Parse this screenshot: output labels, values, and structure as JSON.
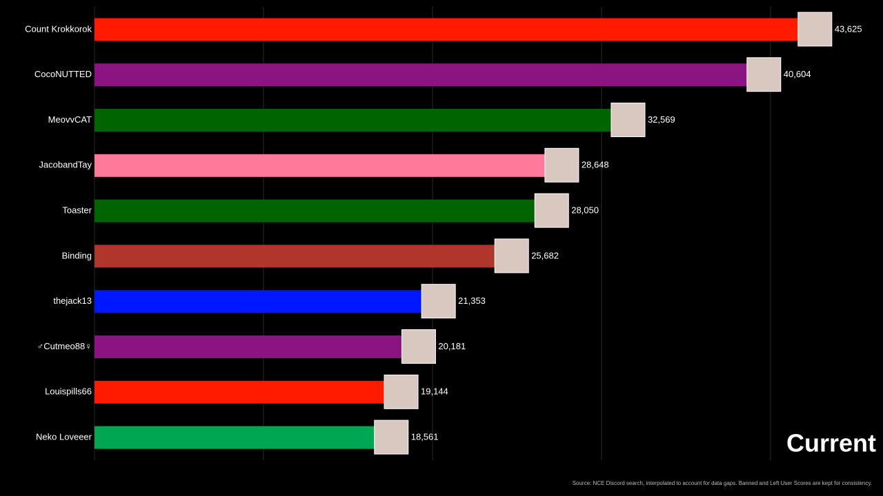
{
  "chart_data": {
    "type": "bar",
    "orientation": "horizontal",
    "categories": [
      "Count Krokkorok",
      "CocoNUTTED",
      "MeovvCAT",
      "JacobandTay",
      "Toaster",
      "Binding",
      "thejack13",
      "♂Cutmeo88♀",
      "Louispills66",
      "Neko Loveeer"
    ],
    "values": [
      43625,
      40604,
      32569,
      28648,
      28050,
      25682,
      21353,
      20181,
      19144,
      18561
    ],
    "value_labels": [
      "43,625",
      "40,604",
      "32,569",
      "28,648",
      "28,050",
      "25,682",
      "21,353",
      "20,181",
      "19,144",
      "18,561"
    ],
    "colors": [
      "#ff1a00",
      "#8b1482",
      "#006400",
      "#ff7a9a",
      "#006400",
      "#b0352a",
      "#0018ff",
      "#8b1482",
      "#ff1a00",
      "#00a651"
    ],
    "xlim": [
      0,
      46000
    ],
    "xticks": [
      0,
      10000,
      20000,
      30000,
      40000
    ],
    "grid": true,
    "period": "Current",
    "source": "Source: NCE Discord search, interpolated to account for data gaps. Banned and Left User Scores are kept for consistency."
  }
}
